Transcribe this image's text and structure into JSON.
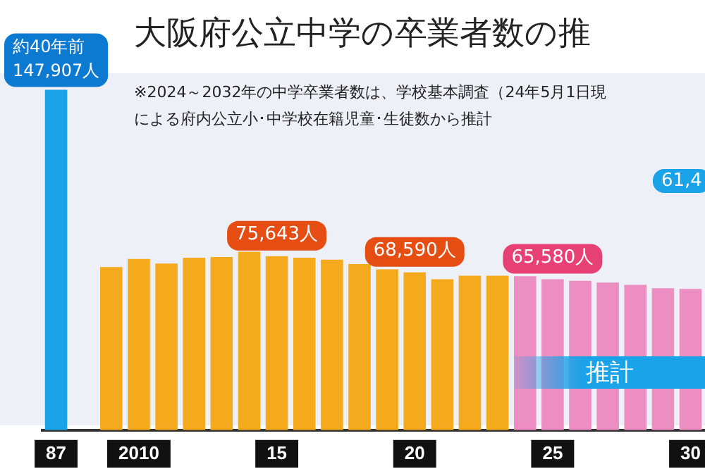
{
  "chart_data": {
    "type": "bar",
    "title": "大阪府公立中学の卒業者数の推",
    "subtitle": "※2024～2032年の中学卒業者数は、学校基本調査（24年5月1日現による府内公立小･中学校在籍児童･生徒数から推計",
    "categories": [
      "87",
      null,
      null,
      "2010",
      null,
      null,
      null,
      null,
      "15",
      null,
      null,
      null,
      null,
      "20",
      null,
      null,
      null,
      null,
      "25",
      null,
      null,
      null,
      null,
      "30"
    ],
    "values": [
      147907,
      null,
      70900,
      74400,
      72400,
      74900,
      75200,
      77500,
      75643,
      74900,
      74100,
      72200,
      69900,
      68590,
      65600,
      67100,
      67100,
      66900,
      65580,
      64900,
      64100,
      63100,
      61700,
      61400
    ],
    "colors": [
      "#1aa3e8",
      null,
      "#f5aa1e",
      "#f5aa1e",
      "#f5aa1e",
      "#f5aa1e",
      "#f5aa1e",
      "#f5aa1e",
      "#f5aa1e",
      "#f5aa1e",
      "#f5aa1e",
      "#f5aa1e",
      "#f5aa1e",
      "#f5aa1e",
      "#f5aa1e",
      "#f5aa1e",
      "#f5aa1e",
      "#ec8ec2",
      "#ec8ec2",
      "#ec8ec2",
      "#ec8ec2",
      "#ec8ec2",
      "#ec8ec2",
      "#ec8ec2"
    ],
    "value_labels": [
      "147,907人",
      null,
      null,
      null,
      null,
      null,
      null,
      null,
      "75,643人",
      null,
      null,
      null,
      null,
      "68,590人",
      null,
      null,
      null,
      null,
      "65,580人",
      null,
      null,
      null,
      null,
      null
    ],
    "tick_labels": "x",
    "annotations": [
      "約40年前",
      "推計",
      "61,4"
    ]
  }
}
